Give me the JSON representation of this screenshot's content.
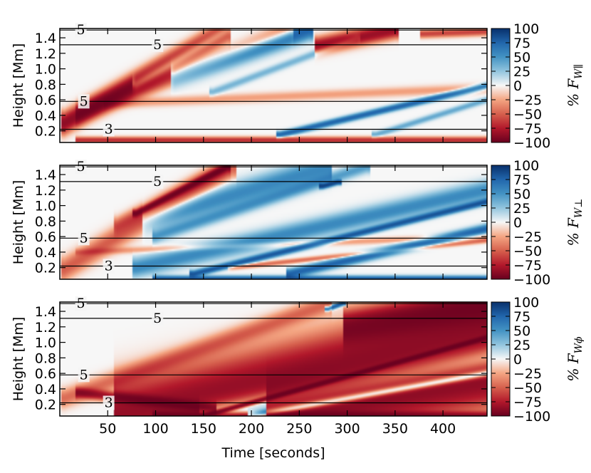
{
  "chart_data": {
    "type": "heatmap",
    "shared_xlabel": "Time [seconds]",
    "xlim": [
      0,
      446
    ],
    "x_ticks": [
      50,
      100,
      150,
      200,
      250,
      300,
      350,
      400
    ],
    "ylim": [
      0.05,
      1.52
    ],
    "y_ticks": [
      0.2,
      0.4,
      0.6,
      0.8,
      1.0,
      1.2,
      1.4
    ],
    "colormap": "RdBu (red = negative, blue = positive)",
    "color_low": "#8b0a1a",
    "color_mid": "#f5f5f5",
    "color_high": "#08306b",
    "contour_heights_mm": [
      0.22,
      0.58,
      1.31,
      1.5
    ],
    "contour_labels": [
      {
        "text": "3",
        "height_mm": 0.22,
        "time_s": 51
      },
      {
        "text": "5",
        "height_mm": 0.58,
        "time_s": 25
      },
      {
        "text": "5",
        "height_mm": 1.31,
        "time_s": 102
      },
      {
        "text": "5",
        "height_mm": 1.5,
        "time_s": 22
      }
    ],
    "panels": [
      {
        "ylabel": "Height [Mm]",
        "colorbar_label": "% F",
        "colorbar_subscript": "W∥",
        "colorbar_ticks": [
          100,
          75,
          50,
          25,
          0,
          -25,
          -50,
          -75,
          -100
        ],
        "features": [
          {
            "t0": 5,
            "h0": 0.3,
            "t1": 175,
            "h1": 1.5,
            "w": 0.13,
            "v": -0.95
          },
          {
            "t0": 80,
            "h0": 0.8,
            "t1": 175,
            "h1": 1.5,
            "w": 0.08,
            "v": 0.7
          },
          {
            "t0": 20,
            "h0": 0.42,
            "t1": 240,
            "h1": 1.5,
            "w": 0.11,
            "v": -0.5
          },
          {
            "t0": 120,
            "h0": 0.9,
            "t1": 260,
            "h1": 1.5,
            "w": 0.12,
            "v": 0.7
          },
          {
            "t0": 160,
            "h0": 0.7,
            "t1": 310,
            "h1": 1.4,
            "w": 0.05,
            "v": 0.25
          },
          {
            "t0": 50,
            "h0": 0.55,
            "t1": 446,
            "h1": 0.75,
            "w": 0.06,
            "v": -0.2
          },
          {
            "t0": 270,
            "h0": 1.3,
            "t1": 350,
            "h1": 1.5,
            "w": 0.1,
            "v": -0.85
          },
          {
            "t0": 380,
            "h0": 1.45,
            "t1": 446,
            "h1": 1.48,
            "w": 0.05,
            "v": -0.5
          },
          {
            "t0": 230,
            "h0": 0.15,
            "t1": 446,
            "h1": 0.78,
            "w": 0.04,
            "v": 0.7
          },
          {
            "t0": 330,
            "h0": 0.15,
            "t1": 446,
            "h1": 0.6,
            "w": 0.04,
            "v": 0.3
          },
          {
            "t0": 20,
            "h0": 0.08,
            "t1": 446,
            "h1": 0.08,
            "w": 0.04,
            "v": -0.6
          }
        ]
      },
      {
        "ylabel": "Height [Mm]",
        "colorbar_label": "% F",
        "colorbar_subscript": "W⊥",
        "colorbar_ticks": [
          100,
          75,
          50,
          25,
          0,
          -25,
          -50,
          -75,
          -100
        ],
        "features": [
          {
            "t0": 80,
            "h0": 0.9,
            "t1": 175,
            "h1": 1.5,
            "w": 0.04,
            "v": -0.95
          },
          {
            "t0": 60,
            "h0": 0.75,
            "t1": 175,
            "h1": 1.5,
            "w": 0.1,
            "v": -0.35
          },
          {
            "t0": 5,
            "h0": 0.18,
            "t1": 180,
            "h1": 1.5,
            "w": 0.15,
            "v": -0.4
          },
          {
            "t0": 90,
            "h0": 0.8,
            "t1": 280,
            "h1": 1.5,
            "w": 0.15,
            "v": 0.45
          },
          {
            "t0": 100,
            "h0": 0.6,
            "t1": 320,
            "h1": 1.5,
            "w": 0.08,
            "v": 0.35
          },
          {
            "t0": 80,
            "h0": 0.2,
            "t1": 446,
            "h1": 1.2,
            "w": 0.12,
            "v": 0.45
          },
          {
            "t0": 140,
            "h0": 0.12,
            "t1": 446,
            "h1": 1.05,
            "w": 0.04,
            "v": 0.8
          },
          {
            "t0": 240,
            "h0": 0.12,
            "t1": 446,
            "h1": 0.7,
            "w": 0.06,
            "v": 0.7
          },
          {
            "t0": 100,
            "h0": 0.05,
            "t1": 446,
            "h1": 0.05,
            "w": 0.04,
            "v": 0.85
          },
          {
            "t0": 180,
            "h0": 0.2,
            "t1": 446,
            "h1": 0.55,
            "w": 0.03,
            "v": -0.35
          },
          {
            "t0": 275,
            "h0": 1.25,
            "t1": 290,
            "h1": 1.3,
            "w": 0.03,
            "v": 0.9
          },
          {
            "t0": 20,
            "h0": 0.4,
            "t1": 446,
            "h1": 0.6,
            "w": 0.04,
            "v": -0.2
          }
        ]
      },
      {
        "ylabel": "Height [Mm]",
        "colorbar_label": "% F",
        "colorbar_subscript": "Wϕ",
        "colorbar_ticks": [
          100,
          75,
          50,
          25,
          0,
          -25,
          -50,
          -75,
          -100
        ],
        "features": [
          {
            "t0": 60,
            "h0": 0.05,
            "t1": 446,
            "h1": 1.18,
            "w": 0.42,
            "v": -0.9
          },
          {
            "t0": 150,
            "h0": 0.05,
            "t1": 446,
            "h1": 1.06,
            "w": 0.03,
            "v": -1.0
          },
          {
            "t0": 5,
            "h0": 0.28,
            "t1": 280,
            "h1": 1.5,
            "w": 0.12,
            "v": -0.35
          },
          {
            "t0": 150,
            "h0": 0.05,
            "t1": 446,
            "h1": 0.8,
            "w": 0.16,
            "v": 0.6
          },
          {
            "t0": 200,
            "h0": 0.05,
            "t1": 446,
            "h1": 0.6,
            "w": 0.05,
            "v": 0.85
          },
          {
            "t0": 220,
            "h0": 0.05,
            "t1": 446,
            "h1": 0.5,
            "w": 0.35,
            "v": -0.9
          },
          {
            "t0": 300,
            "h0": 1.2,
            "t1": 446,
            "h1": 1.5,
            "w": 0.2,
            "v": -0.95
          },
          {
            "t0": 280,
            "h0": 1.43,
            "t1": 295,
            "h1": 1.5,
            "w": 0.03,
            "v": 0.8
          },
          {
            "t0": 20,
            "h0": 0.35,
            "t1": 160,
            "h1": 0.15,
            "w": 0.06,
            "v": -0.75
          },
          {
            "t0": 100,
            "h0": 0.05,
            "t1": 446,
            "h1": 0.05,
            "w": 0.05,
            "v": -0.8
          }
        ]
      }
    ]
  }
}
